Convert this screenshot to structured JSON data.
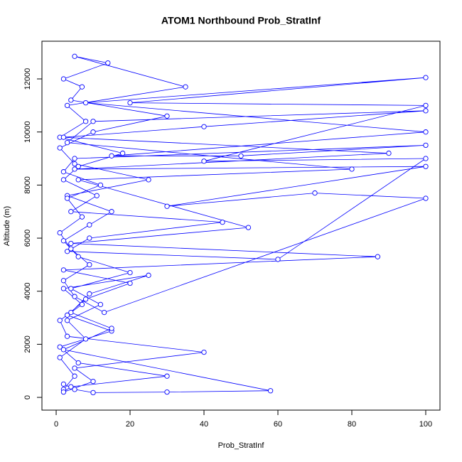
{
  "chart_data": {
    "type": "line",
    "title": "ATOM1 Northbound Prob_StratInf",
    "xlabel": "Prob_StratInf",
    "ylabel": "Altitude (m)",
    "color": "#0000ff",
    "x": [
      2,
      5,
      1,
      8,
      3,
      12,
      4,
      20,
      6,
      2,
      9,
      15,
      3,
      25,
      5,
      1,
      10,
      30,
      4,
      7,
      2,
      14,
      5,
      35,
      3,
      8,
      1,
      18,
      6,
      2,
      11,
      4,
      45,
      9,
      3,
      60,
      100,
      40,
      100,
      20,
      100,
      8,
      100,
      15,
      50,
      100,
      5,
      2,
      12,
      3,
      7,
      1,
      4,
      9,
      2,
      5,
      13,
      100,
      70,
      30,
      100,
      5,
      90,
      2,
      40,
      100,
      10,
      3,
      80,
      6,
      52,
      4,
      87,
      2,
      20,
      8,
      3,
      15,
      1,
      6,
      30,
      4,
      2,
      10,
      5,
      40,
      3,
      1,
      7,
      2,
      25,
      9,
      4,
      15,
      2,
      58,
      30,
      10,
      5,
      2
    ],
    "values": [
      300,
      800,
      1500,
      2200,
      2900,
      3500,
      4100,
      4700,
      5300,
      5900,
      6500,
      7000,
      7600,
      8200,
      8800,
      9400,
      10000,
      10600,
      11200,
      11700,
      12000,
      12600,
      12850,
      11700,
      11000,
      10400,
      9800,
      9200,
      8700,
      8200,
      7600,
      7000,
      6600,
      6000,
      5500,
      5200,
      9000,
      8900,
      11000,
      11100,
      12050,
      11100,
      10000,
      9100,
      9100,
      9500,
      9000,
      8500,
      8000,
      7500,
      6800,
      6200,
      5600,
      5000,
      4400,
      3800,
      3200,
      7500,
      7700,
      7200,
      8700,
      8600,
      9200,
      9800,
      10200,
      10800,
      10400,
      9600,
      8600,
      8200,
      6400,
      5800,
      5300,
      4800,
      4300,
      3700,
      3100,
      2500,
      1900,
      1300,
      800,
      400,
      200,
      600,
      1100,
      1700,
      2300,
      2900,
      3500,
      4100,
      4600,
      3900,
      3200,
      2600,
      1800,
      250,
      200,
      180,
      300,
      500
    ],
    "xlim": [
      -3.85,
      103.85
    ],
    "ylim": [
      -480,
      13420
    ],
    "xticks": [
      0,
      20,
      40,
      60,
      80,
      100
    ],
    "yticks": [
      0,
      2000,
      4000,
      6000,
      8000,
      10000,
      12000
    ]
  }
}
